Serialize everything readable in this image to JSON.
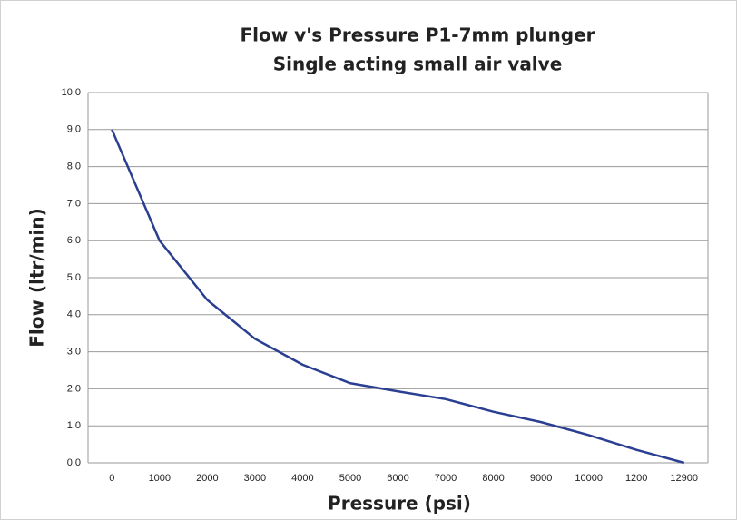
{
  "chart_data": {
    "type": "line",
    "title": "Flow v's Pressure P1-7mm plunger",
    "subtitle": "Single acting small air valve",
    "x_label": "Pressure (psi)",
    "y_label": "Flow (ltr/min)",
    "categories": [
      "0",
      "1000",
      "2000",
      "3000",
      "4000",
      "5000",
      "6000",
      "7000",
      "8000",
      "9000",
      "10000",
      "1200",
      "12900"
    ],
    "series": [
      {
        "name": "Flow",
        "color": "#2b3f92",
        "values": [
          9.0,
          6.0,
          4.4,
          3.35,
          2.65,
          2.15,
          1.93,
          1.72,
          1.38,
          1.1,
          0.75,
          0.35,
          0.0
        ]
      }
    ],
    "ylim": [
      0,
      10
    ],
    "yticks": [
      {
        "value": 0,
        "label": "0.0"
      },
      {
        "value": 1,
        "label": "1.0"
      },
      {
        "value": 2,
        "label": "2.0"
      },
      {
        "value": 3,
        "label": "3.0"
      },
      {
        "value": 4,
        "label": "4.0"
      },
      {
        "value": 5,
        "label": "5.0"
      },
      {
        "value": 6,
        "label": "6.0"
      },
      {
        "value": 7,
        "label": "7.0"
      },
      {
        "value": 8,
        "label": "8.0"
      },
      {
        "value": 9,
        "label": "9.0"
      },
      {
        "value": 10,
        "label": "10.0"
      }
    ],
    "grid": true
  }
}
